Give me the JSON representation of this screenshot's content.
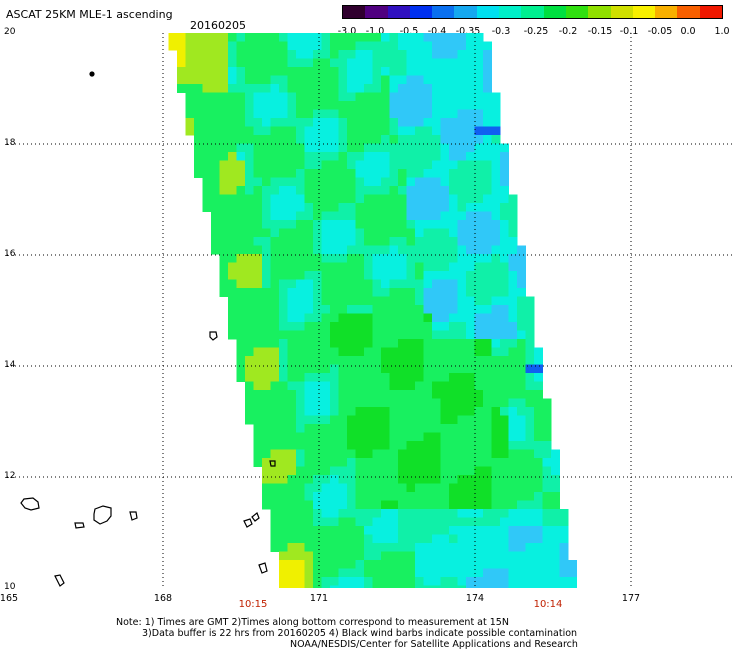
{
  "header": {
    "title": "ASCAT 25KM MLE-1 ascending",
    "date": "20160205"
  },
  "colorbar": {
    "colors": [
      "#30002e",
      "#500080",
      "#3010c0",
      "#0030f0",
      "#0a70f0",
      "#15a8f0",
      "#00e0f0",
      "#00f0c8",
      "#00f090",
      "#00e040",
      "#30e010",
      "#90e000",
      "#d0e000",
      "#f8f000",
      "#f8b000",
      "#f86000",
      "#f01800"
    ],
    "ticks": [
      "-3.0",
      "-1.0",
      "-0.5",
      "-0.4",
      "-0.35",
      "-0.3",
      "-0.25",
      "-0.2",
      "-0.15",
      "-0.1",
      "-0.05",
      "0.0",
      "1.0"
    ]
  },
  "map": {
    "lon_range": [
      165,
      179
    ],
    "lat_range": [
      10,
      20
    ],
    "lat_ticks": [
      "20",
      "18",
      "16",
      "14",
      "12",
      "10"
    ],
    "lon_ticks": [
      "165",
      "168",
      "171",
      "174",
      "177"
    ],
    "times": [
      "10:15",
      "10:14"
    ],
    "swath_colors": {
      "cyan": "#08f0e0",
      "teal": "#10f0a8",
      "green": "#18f060",
      "bright_green": "#10e028",
      "light_blue": "#30c8f8",
      "blue": "#1060f0",
      "yellow_green": "#a0e820",
      "yellow": "#f0f000"
    }
  },
  "footer": {
    "line1": "Note: 1) Times are GMT 2)Times along bottom correspond to measurement at 15N",
    "line2": "3)Data buffer is 22 hrs from 20160205 4) Black wind barbs indicate possible contamination",
    "line3": "NOAA/NESDIS/Center for Satellite Applications and Research"
  }
}
